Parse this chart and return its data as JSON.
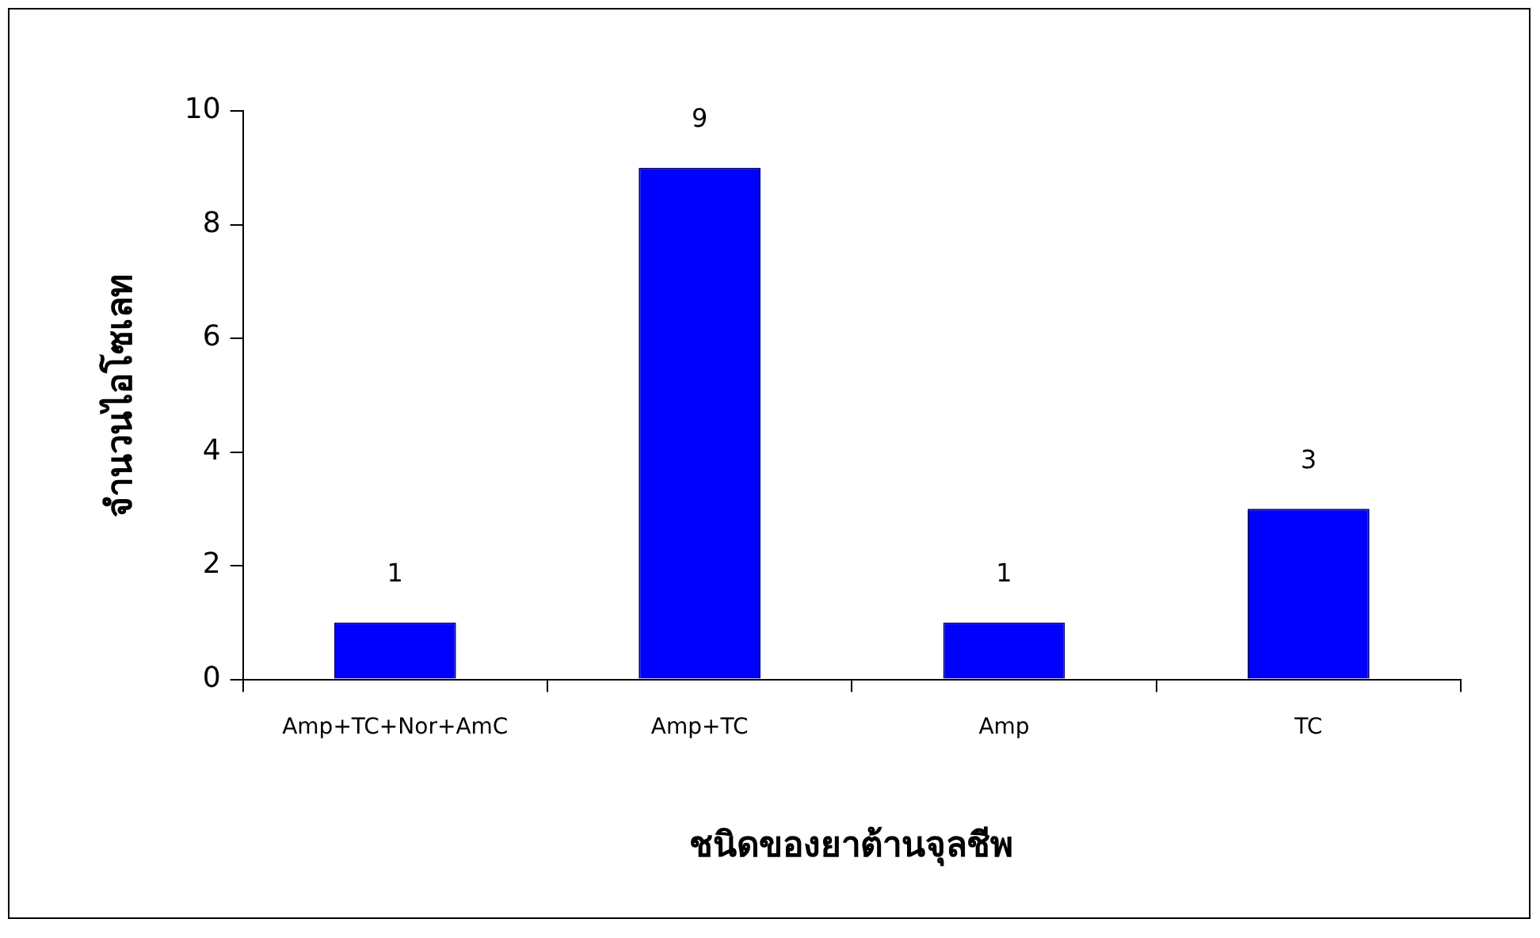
{
  "chart_data": {
    "type": "bar",
    "xlabel": "ชนิดของยาต้านจุลชีพ",
    "ylabel": "จำนวนไอโซเลท",
    "categories": [
      "Amp+TC+Nor+AmC",
      "Amp+TC",
      "Amp",
      "TC"
    ],
    "values": [
      1,
      9,
      1,
      3
    ],
    "color": "#0000ff",
    "ylim": [
      0,
      10
    ],
    "yticks": [
      0,
      2,
      4,
      6,
      8,
      10
    ],
    "grid": false,
    "legend": false,
    "data_labels": true
  }
}
